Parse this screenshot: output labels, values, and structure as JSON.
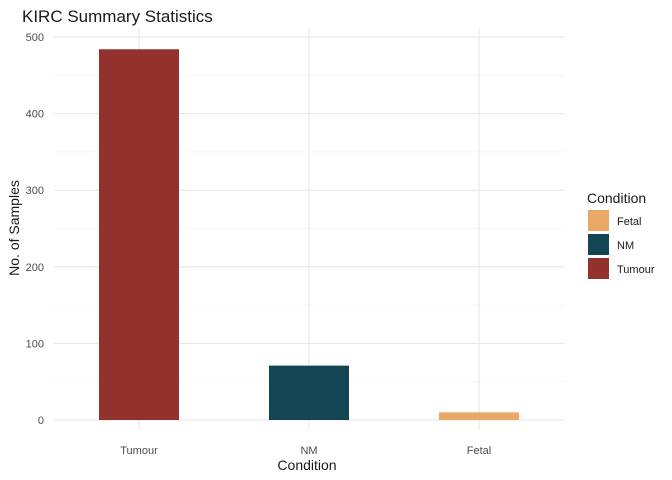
{
  "chart_data": {
    "type": "bar",
    "title": "KIRC Summary Statistics",
    "xlabel": "Condition",
    "ylabel": "No. of Samples",
    "categories": [
      "Tumour",
      "NM",
      "Fetal"
    ],
    "values": [
      484,
      71,
      10
    ],
    "bar_colors": [
      "#93312c",
      "#134552",
      "#e9a866"
    ],
    "ylim": [
      0,
      500
    ],
    "yticks": [
      0,
      100,
      200,
      300,
      400,
      500
    ],
    "grid": true,
    "legend": {
      "title": "Condition",
      "position": "right",
      "entries": [
        {
          "label": "Fetal",
          "color": "#e9a866"
        },
        {
          "label": "NM",
          "color": "#134552"
        },
        {
          "label": "Tumour",
          "color": "#93312c"
        }
      ]
    }
  }
}
